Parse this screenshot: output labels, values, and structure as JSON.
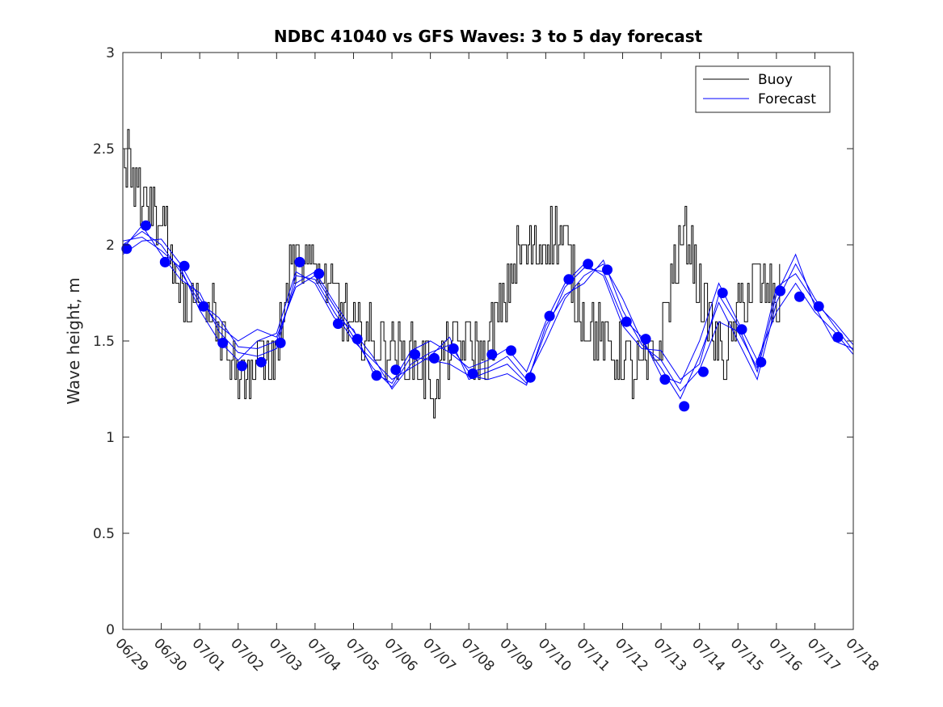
{
  "chart_data": {
    "type": "line",
    "title": "NDBC 41040 vs GFS Waves: 3 to 5 day forecast",
    "xlabel": "",
    "ylabel": "Wave height, m",
    "x_tick_labels": [
      "06/29",
      "06/30",
      "07/01",
      "07/02",
      "07/03",
      "07/04",
      "07/05",
      "07/06",
      "07/07",
      "07/08",
      "07/09",
      "07/10",
      "07/11",
      "07/12",
      "07/13",
      "07/14",
      "07/15",
      "07/16",
      "07/17",
      "07/18"
    ],
    "xlim_days": [
      0,
      19
    ],
    "ylim": [
      0,
      3
    ],
    "y_ticks": [
      0,
      0.5,
      1,
      1.5,
      2,
      2.5,
      3
    ],
    "y_tick_labels": [
      "0",
      "0.5",
      "1",
      "1.5",
      "2",
      "2.5",
      "3"
    ],
    "grid": false,
    "legend": {
      "placement": "top-right",
      "entries": [
        {
          "label": "Buoy",
          "color": "#000000"
        },
        {
          "label": "Forecast",
          "color": "#0000ff"
        }
      ]
    },
    "buoy_anchors": [
      [
        0.0,
        2.35
      ],
      [
        0.15,
        2.45
      ],
      [
        0.3,
        2.3
      ],
      [
        0.5,
        2.25
      ],
      [
        0.7,
        2.2
      ],
      [
        0.9,
        2.2
      ],
      [
        1.05,
        2.05
      ],
      [
        1.2,
        1.95
      ],
      [
        1.4,
        1.8
      ],
      [
        1.6,
        1.7
      ],
      [
        1.8,
        1.65
      ],
      [
        2.0,
        1.7
      ],
      [
        2.2,
        1.75
      ],
      [
        2.4,
        1.6
      ],
      [
        2.6,
        1.5
      ],
      [
        2.8,
        1.4
      ],
      [
        3.0,
        1.35
      ],
      [
        3.2,
        1.35
      ],
      [
        3.4,
        1.4
      ],
      [
        3.6,
        1.38
      ],
      [
        3.8,
        1.4
      ],
      [
        4.0,
        1.45
      ],
      [
        4.2,
        1.7
      ],
      [
        4.35,
        1.95
      ],
      [
        4.5,
        2.0
      ],
      [
        4.7,
        1.95
      ],
      [
        4.9,
        1.9
      ],
      [
        5.1,
        1.85
      ],
      [
        5.3,
        1.8
      ],
      [
        5.5,
        1.7
      ],
      [
        5.7,
        1.65
      ],
      [
        5.9,
        1.6
      ],
      [
        6.1,
        1.55
      ],
      [
        6.3,
        1.55
      ],
      [
        6.5,
        1.5
      ],
      [
        6.7,
        1.52
      ],
      [
        6.9,
        1.5
      ],
      [
        7.1,
        1.45
      ],
      [
        7.3,
        1.42
      ],
      [
        7.5,
        1.4
      ],
      [
        7.7,
        1.38
      ],
      [
        7.9,
        1.35
      ],
      [
        8.05,
        1.25
      ],
      [
        8.15,
        1.2
      ],
      [
        8.3,
        1.4
      ],
      [
        8.5,
        1.5
      ],
      [
        8.7,
        1.45
      ],
      [
        8.9,
        1.5
      ],
      [
        9.1,
        1.45
      ],
      [
        9.3,
        1.4
      ],
      [
        9.5,
        1.45
      ],
      [
        9.7,
        1.6
      ],
      [
        9.9,
        1.7
      ],
      [
        10.1,
        1.85
      ],
      [
        10.3,
        1.95
      ],
      [
        10.5,
        1.95
      ],
      [
        10.7,
        2.0
      ],
      [
        10.9,
        2.0
      ],
      [
        11.1,
        2.05
      ],
      [
        11.3,
        2.05
      ],
      [
        11.5,
        2.0
      ],
      [
        11.7,
        1.8
      ],
      [
        11.9,
        1.7
      ],
      [
        12.1,
        1.6
      ],
      [
        12.3,
        1.55
      ],
      [
        12.5,
        1.5
      ],
      [
        12.7,
        1.45
      ],
      [
        12.9,
        1.4
      ],
      [
        13.1,
        1.38
      ],
      [
        13.3,
        1.35
      ],
      [
        13.5,
        1.35
      ],
      [
        13.7,
        1.4
      ],
      [
        13.9,
        1.45
      ],
      [
        14.1,
        1.65
      ],
      [
        14.3,
        1.85
      ],
      [
        14.5,
        2.0
      ],
      [
        14.7,
        2.05
      ],
      [
        14.9,
        1.85
      ],
      [
        15.1,
        1.7
      ],
      [
        15.3,
        1.55
      ],
      [
        15.5,
        1.48
      ],
      [
        15.7,
        1.45
      ],
      [
        15.9,
        1.55
      ],
      [
        16.1,
        1.7
      ],
      [
        16.3,
        1.75
      ],
      [
        16.5,
        1.8
      ],
      [
        16.7,
        1.75
      ],
      [
        16.9,
        1.72
      ],
      [
        17.1,
        1.7
      ]
    ],
    "forecast_dots": [
      [
        0.1,
        1.98
      ],
      [
        0.6,
        2.1
      ],
      [
        1.1,
        1.91
      ],
      [
        1.6,
        1.89
      ],
      [
        2.1,
        1.68
      ],
      [
        2.6,
        1.49
      ],
      [
        3.1,
        1.37
      ],
      [
        3.6,
        1.39
      ],
      [
        4.1,
        1.49
      ],
      [
        4.6,
        1.91
      ],
      [
        5.1,
        1.85
      ],
      [
        5.6,
        1.59
      ],
      [
        6.1,
        1.51
      ],
      [
        6.6,
        1.32
      ],
      [
        7.1,
        1.35
      ],
      [
        7.6,
        1.43
      ],
      [
        8.1,
        1.41
      ],
      [
        8.6,
        1.46
      ],
      [
        9.1,
        1.33
      ],
      [
        9.6,
        1.43
      ],
      [
        10.1,
        1.45
      ],
      [
        10.6,
        1.31
      ],
      [
        11.1,
        1.63
      ],
      [
        11.6,
        1.82
      ],
      [
        12.1,
        1.9
      ],
      [
        12.6,
        1.87
      ],
      [
        13.1,
        1.6
      ],
      [
        13.6,
        1.51
      ],
      [
        14.1,
        1.3
      ],
      [
        14.6,
        1.16
      ],
      [
        15.1,
        1.34
      ],
      [
        15.6,
        1.75
      ],
      [
        16.1,
        1.56
      ],
      [
        16.6,
        1.39
      ],
      [
        17.1,
        1.76
      ],
      [
        17.6,
        1.73
      ],
      [
        18.1,
        1.68
      ],
      [
        18.6,
        1.52
      ]
    ],
    "forecast_series": [
      [
        [
          0.0,
          1.95
        ],
        [
          0.5,
          2.02
        ],
        [
          1.0,
          2.03
        ],
        [
          1.5,
          1.9
        ],
        [
          2.0,
          1.72
        ],
        [
          2.5,
          1.58
        ],
        [
          3.0,
          1.5
        ],
        [
          3.5,
          1.56
        ],
        [
          4.0,
          1.52
        ],
        [
          4.5,
          1.78
        ],
        [
          5.0,
          1.84
        ],
        [
          5.5,
          1.68
        ],
        [
          6.0,
          1.52
        ],
        [
          6.5,
          1.36
        ],
        [
          7.0,
          1.26
        ],
        [
          7.5,
          1.42
        ],
        [
          8.0,
          1.4
        ],
        [
          8.5,
          1.38
        ],
        [
          9.0,
          1.32
        ],
        [
          9.5,
          1.3
        ],
        [
          10.0,
          1.33
        ],
        [
          10.5,
          1.27
        ],
        [
          11.0,
          1.58
        ],
        [
          11.5,
          1.74
        ],
        [
          12.0,
          1.8
        ],
        [
          12.5,
          1.92
        ],
        [
          13.0,
          1.66
        ],
        [
          13.5,
          1.48
        ],
        [
          14.0,
          1.4
        ],
        [
          14.5,
          1.24
        ],
        [
          15.0,
          1.35
        ],
        [
          15.5,
          1.6
        ],
        [
          16.0,
          1.55
        ],
        [
          16.5,
          1.36
        ],
        [
          17.0,
          1.78
        ],
        [
          17.5,
          1.85
        ],
        [
          18.0,
          1.7
        ],
        [
          18.5,
          1.6
        ],
        [
          19.0,
          1.48
        ]
      ],
      [
        [
          0.0,
          2.0
        ],
        [
          0.5,
          2.07
        ],
        [
          1.0,
          2.0
        ],
        [
          1.5,
          1.86
        ],
        [
          2.0,
          1.7
        ],
        [
          2.5,
          1.62
        ],
        [
          3.0,
          1.47
        ],
        [
          3.5,
          1.46
        ],
        [
          4.0,
          1.5
        ],
        [
          4.5,
          1.8
        ],
        [
          5.0,
          1.86
        ],
        [
          5.5,
          1.7
        ],
        [
          6.0,
          1.55
        ],
        [
          6.5,
          1.42
        ],
        [
          7.0,
          1.25
        ],
        [
          7.5,
          1.38
        ],
        [
          8.0,
          1.44
        ],
        [
          8.5,
          1.48
        ],
        [
          9.0,
          1.34
        ],
        [
          9.5,
          1.36
        ],
        [
          10.0,
          1.42
        ],
        [
          10.5,
          1.3
        ],
        [
          11.0,
          1.5
        ],
        [
          11.5,
          1.72
        ],
        [
          12.0,
          1.84
        ],
        [
          12.5,
          1.9
        ],
        [
          13.0,
          1.72
        ],
        [
          13.5,
          1.5
        ],
        [
          14.0,
          1.36
        ],
        [
          14.5,
          1.2
        ],
        [
          15.0,
          1.42
        ],
        [
          15.5,
          1.7
        ],
        [
          16.0,
          1.5
        ],
        [
          16.5,
          1.3
        ],
        [
          17.0,
          1.7
        ],
        [
          17.5,
          1.9
        ],
        [
          18.0,
          1.72
        ],
        [
          18.5,
          1.58
        ],
        [
          19.0,
          1.45
        ]
      ],
      [
        [
          0.0,
          1.98
        ],
        [
          0.5,
          2.1
        ],
        [
          1.0,
          1.95
        ],
        [
          1.5,
          1.82
        ],
        [
          2.0,
          1.75
        ],
        [
          2.5,
          1.55
        ],
        [
          3.0,
          1.44
        ],
        [
          3.5,
          1.42
        ],
        [
          4.0,
          1.46
        ],
        [
          4.5,
          1.84
        ],
        [
          5.0,
          1.82
        ],
        [
          5.5,
          1.65
        ],
        [
          6.0,
          1.5
        ],
        [
          6.5,
          1.4
        ],
        [
          7.0,
          1.3
        ],
        [
          7.5,
          1.36
        ],
        [
          8.0,
          1.42
        ],
        [
          8.5,
          1.52
        ],
        [
          9.0,
          1.3
        ],
        [
          9.5,
          1.34
        ],
        [
          10.0,
          1.38
        ],
        [
          10.5,
          1.28
        ],
        [
          11.0,
          1.55
        ],
        [
          11.5,
          1.78
        ],
        [
          12.0,
          1.88
        ],
        [
          12.5,
          1.86
        ],
        [
          13.0,
          1.62
        ],
        [
          13.5,
          1.52
        ],
        [
          14.0,
          1.32
        ],
        [
          14.5,
          1.28
        ],
        [
          15.0,
          1.5
        ],
        [
          15.5,
          1.8
        ],
        [
          16.0,
          1.6
        ],
        [
          16.5,
          1.4
        ],
        [
          17.0,
          1.65
        ],
        [
          17.5,
          1.8
        ],
        [
          18.0,
          1.65
        ],
        [
          18.5,
          1.55
        ],
        [
          19.0,
          1.43
        ]
      ],
      [
        [
          0.0,
          2.02
        ],
        [
          0.5,
          2.04
        ],
        [
          1.0,
          1.97
        ],
        [
          1.5,
          1.88
        ],
        [
          2.0,
          1.66
        ],
        [
          2.5,
          1.5
        ],
        [
          3.0,
          1.4
        ],
        [
          3.5,
          1.5
        ],
        [
          4.0,
          1.54
        ],
        [
          4.5,
          1.86
        ],
        [
          5.0,
          1.8
        ],
        [
          5.5,
          1.62
        ],
        [
          6.0,
          1.56
        ],
        [
          6.5,
          1.34
        ],
        [
          7.0,
          1.28
        ],
        [
          7.5,
          1.45
        ],
        [
          8.0,
          1.5
        ],
        [
          8.5,
          1.44
        ],
        [
          9.0,
          1.36
        ],
        [
          9.5,
          1.4
        ],
        [
          10.0,
          1.46
        ],
        [
          10.5,
          1.34
        ],
        [
          11.0,
          1.6
        ],
        [
          11.5,
          1.8
        ],
        [
          12.0,
          1.9
        ],
        [
          12.5,
          1.84
        ],
        [
          13.0,
          1.58
        ],
        [
          13.5,
          1.46
        ],
        [
          14.0,
          1.45
        ],
        [
          14.5,
          1.3
        ],
        [
          15.0,
          1.38
        ],
        [
          15.5,
          1.74
        ],
        [
          16.0,
          1.58
        ],
        [
          16.5,
          1.34
        ],
        [
          17.0,
          1.74
        ],
        [
          17.5,
          1.95
        ],
        [
          18.0,
          1.68
        ],
        [
          18.5,
          1.5
        ],
        [
          19.0,
          1.46
        ]
      ]
    ],
    "colors": {
      "buoy": "#000000",
      "forecast": "#0000ff",
      "axes": "#262626"
    }
  }
}
